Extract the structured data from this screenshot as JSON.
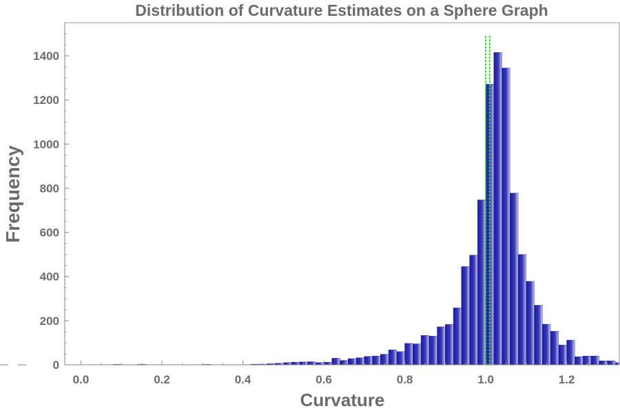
{
  "chart_data": {
    "type": "bar",
    "title": "Distribution of Curvature Estimates on a Sphere Graph",
    "xlabel": "Curvature",
    "ylabel": "Frequency",
    "xlim": [
      -0.04,
      1.33
    ],
    "ylim": [
      0,
      1550
    ],
    "xticks": [
      "0.0",
      "0.2",
      "0.4",
      "0.6",
      "0.8",
      "1.0",
      "1.2"
    ],
    "yticks": [
      "0",
      "200",
      "400",
      "600",
      "800",
      "1000",
      "1200",
      "1400"
    ],
    "bin_width": 0.02,
    "bins": [
      {
        "x0": 0.08,
        "value": 2
      },
      {
        "x0": 0.14,
        "value": 2
      },
      {
        "x0": 0.3,
        "value": 2
      },
      {
        "x0": 0.36,
        "value": 1
      },
      {
        "x0": 0.42,
        "value": 3
      },
      {
        "x0": 0.44,
        "value": 3
      },
      {
        "x0": 0.46,
        "value": 5
      },
      {
        "x0": 0.48,
        "value": 7
      },
      {
        "x0": 0.5,
        "value": 10
      },
      {
        "x0": 0.52,
        "value": 12
      },
      {
        "x0": 0.54,
        "value": 13
      },
      {
        "x0": 0.56,
        "value": 14
      },
      {
        "x0": 0.58,
        "value": 10
      },
      {
        "x0": 0.6,
        "value": 12
      },
      {
        "x0": 0.62,
        "value": 30
      },
      {
        "x0": 0.64,
        "value": 20
      },
      {
        "x0": 0.66,
        "value": 28
      },
      {
        "x0": 0.68,
        "value": 32
      },
      {
        "x0": 0.7,
        "value": 38
      },
      {
        "x0": 0.72,
        "value": 40
      },
      {
        "x0": 0.74,
        "value": 48
      },
      {
        "x0": 0.76,
        "value": 68
      },
      {
        "x0": 0.78,
        "value": 60
      },
      {
        "x0": 0.8,
        "value": 97
      },
      {
        "x0": 0.82,
        "value": 95
      },
      {
        "x0": 0.84,
        "value": 133
      },
      {
        "x0": 0.86,
        "value": 130
      },
      {
        "x0": 0.88,
        "value": 172
      },
      {
        "x0": 0.9,
        "value": 183
      },
      {
        "x0": 0.92,
        "value": 258
      },
      {
        "x0": 0.94,
        "value": 445
      },
      {
        "x0": 0.96,
        "value": 497
      },
      {
        "x0": 0.98,
        "value": 747
      },
      {
        "x0": 1.0,
        "value": 1272
      },
      {
        "x0": 1.02,
        "value": 1415
      },
      {
        "x0": 1.04,
        "value": 1345
      },
      {
        "x0": 1.06,
        "value": 778
      },
      {
        "x0": 1.08,
        "value": 500
      },
      {
        "x0": 1.1,
        "value": 378
      },
      {
        "x0": 1.12,
        "value": 270
      },
      {
        "x0": 1.14,
        "value": 184
      },
      {
        "x0": 1.16,
        "value": 152
      },
      {
        "x0": 1.18,
        "value": 90
      },
      {
        "x0": 1.2,
        "value": 112
      },
      {
        "x0": 1.22,
        "value": 37
      },
      {
        "x0": 1.24,
        "value": 40
      },
      {
        "x0": 1.26,
        "value": 40
      },
      {
        "x0": 1.28,
        "value": 18
      },
      {
        "x0": 1.3,
        "value": 18
      },
      {
        "x0": 1.32,
        "value": 10
      }
    ],
    "reference_lines": [
      {
        "x": 1.0,
        "y_top": 1490,
        "style": "dotted",
        "color": "#22dd22"
      },
      {
        "x": 1.01,
        "y_top": 1490,
        "style": "dotted",
        "color": "#22dd22"
      }
    ],
    "colors": {
      "bar_dark": "#1a1aa0",
      "bar_light": "#c8c8f0",
      "text": "#6b6b6b",
      "axis": "#808080"
    },
    "grid": false
  }
}
